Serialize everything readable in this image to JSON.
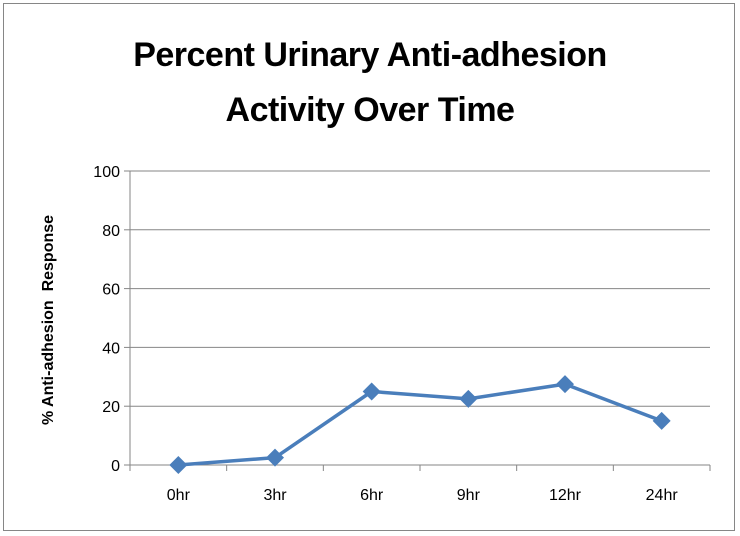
{
  "chart_data": {
    "type": "line",
    "title_line1": "Percent Urinary Anti-adhesion",
    "title_line2": "Activity Over Time",
    "xlabel": "",
    "ylabel": "% Anti-adhesion  Response",
    "categories": [
      "0hr",
      "3hr",
      "6hr",
      "9hr",
      "12hr",
      "24hr"
    ],
    "series": [
      {
        "values": [
          0,
          2.5,
          25,
          22.5,
          27.5,
          15
        ]
      }
    ],
    "ylim": [
      0,
      100
    ],
    "yticks": [
      0,
      20,
      40,
      60,
      80,
      100
    ],
    "grid": true,
    "legend": "none",
    "line_color": "#4a7ebb",
    "grid_color": "#868686"
  }
}
